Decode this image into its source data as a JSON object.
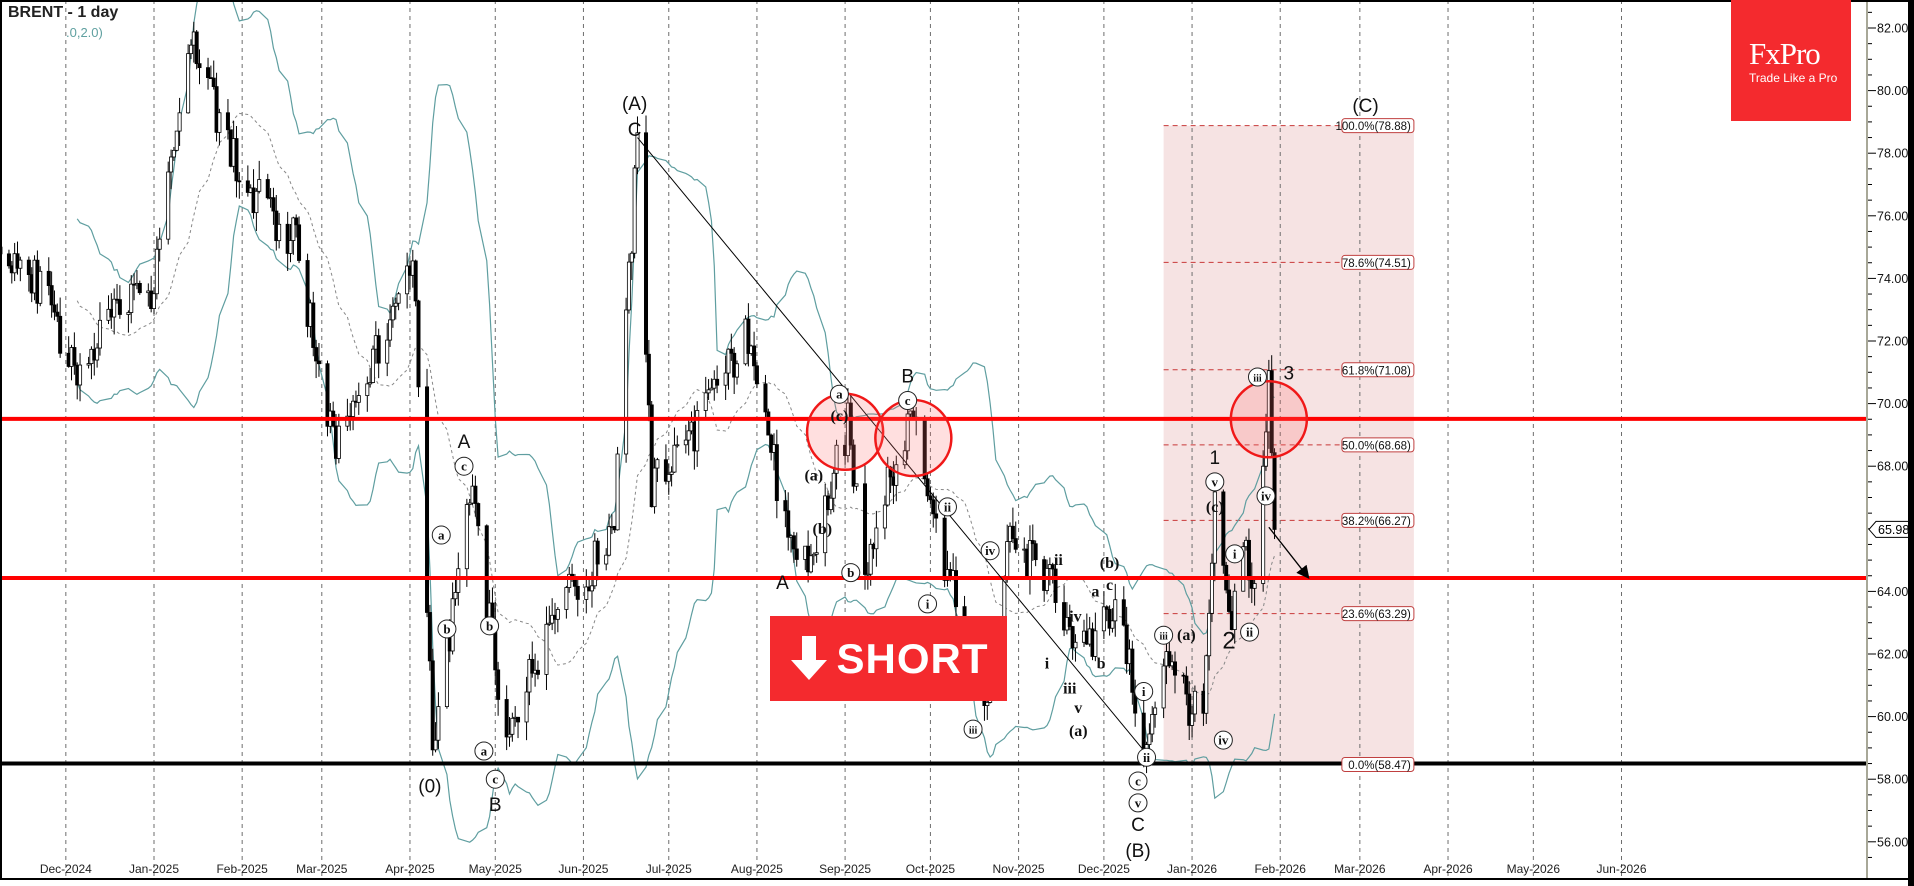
{
  "header": {
    "title": "BRENT - 1 day",
    "indicator_params": ".0,2.0)"
  },
  "logo": {
    "brand": "FxPro",
    "tagline": "Trade Like a Pro",
    "color": "#f42a2e"
  },
  "signal": {
    "label": "SHORT",
    "icon": "arrow-down-icon",
    "color": "#f42a2e"
  },
  "chart_data": {
    "type": "candlestick",
    "symbol": "BRENT",
    "timeframe": "1 day",
    "indicator": "Bollinger Bands",
    "ylim": [
      55.2,
      83
    ],
    "y_ticks": [
      "56.00",
      "58.00",
      "60.00",
      "62.00",
      "64.00",
      "66.00",
      "68.00",
      "70.00",
      "72.00",
      "74.00",
      "76.00",
      "78.00",
      "80.00",
      "82.00"
    ],
    "last_price": "65.98",
    "x_ticks": [
      {
        "date": "2024-12-01",
        "label": "Dec-2024"
      },
      {
        "date": "2025-01-01",
        "label": "Jan-2025"
      },
      {
        "date": "2025-02-01",
        "label": "Feb-2025"
      },
      {
        "date": "2025-03-01",
        "label": "Mar-2025"
      },
      {
        "date": "2025-04-01",
        "label": "Apr-2025"
      },
      {
        "date": "2025-05-01",
        "label": "May-2025"
      },
      {
        "date": "2025-06-01",
        "label": "Jun-2025"
      },
      {
        "date": "2025-07-01",
        "label": "Jul-2025"
      },
      {
        "date": "2025-08-01",
        "label": "Aug-2025"
      },
      {
        "date": "2025-09-01",
        "label": "Sep-2025"
      },
      {
        "date": "2025-10-01",
        "label": "Oct-2025"
      },
      {
        "date": "2025-11-01",
        "label": "Nov-2025"
      },
      {
        "date": "2025-12-01",
        "label": "Dec-2025"
      },
      {
        "date": "2026-01-01",
        "label": "Jan-2026"
      },
      {
        "date": "2026-02-01",
        "label": "Feb-2026"
      },
      {
        "date": "2026-03-01",
        "label": "Mar-2026"
      },
      {
        "date": "2026-04-01",
        "label": "Apr-2026"
      },
      {
        "date": "2026-05-01",
        "label": "May-2026"
      },
      {
        "date": "2026-06-01",
        "label": "Jun-2026"
      }
    ],
    "price_path": [
      [
        "2024-11-08",
        75.0
      ],
      [
        "2024-11-20",
        74.0
      ],
      [
        "2024-12-05",
        71.2
      ],
      [
        "2024-12-20",
        73.2
      ],
      [
        "2024-12-31",
        73.4
      ],
      [
        "2025-01-14",
        81.6
      ],
      [
        "2025-02-01",
        77.1
      ],
      [
        "2025-02-20",
        75.1
      ],
      [
        "2025-03-05",
        68.6
      ],
      [
        "2025-03-25",
        72.4
      ],
      [
        "2025-04-02",
        74.9
      ],
      [
        "2025-04-09",
        59.0
      ],
      [
        "2025-04-23",
        67.3
      ],
      [
        "2025-05-05",
        59.0
      ],
      [
        "2025-05-25",
        64.6
      ],
      [
        "2025-06-02",
        64.2
      ],
      [
        "2025-06-12",
        66.5
      ],
      [
        "2025-06-20",
        78.3
      ],
      [
        "2025-06-25",
        67.3
      ],
      [
        "2025-07-10",
        69.2
      ],
      [
        "2025-07-30",
        72.4
      ],
      [
        "2025-08-12",
        65.3
      ],
      [
        "2025-08-20",
        65.0
      ],
      [
        "2025-09-02",
        69.3
      ],
      [
        "2025-09-08",
        64.9
      ],
      [
        "2025-09-25",
        69.9
      ],
      [
        "2025-10-07",
        64.6
      ],
      [
        "2025-10-20",
        60.2
      ],
      [
        "2025-10-28",
        65.5
      ],
      [
        "2025-11-10",
        64.6
      ],
      [
        "2025-11-25",
        61.9
      ],
      [
        "2025-12-05",
        63.8
      ],
      [
        "2025-12-16",
        58.8
      ],
      [
        "2025-12-23",
        62.3
      ],
      [
        "2025-12-31",
        60.4
      ],
      [
        "2026-01-05",
        59.6
      ],
      [
        "2026-01-09",
        66.6
      ],
      [
        "2026-01-14",
        63.0
      ],
      [
        "2026-01-20",
        65.4
      ],
      [
        "2026-01-22",
        63.6
      ],
      [
        "2026-01-28",
        70.8
      ],
      [
        "2026-01-30",
        65.98
      ]
    ],
    "horizontal_levels": [
      {
        "price": 69.51,
        "color": "#ff0000"
      },
      {
        "price": 64.43,
        "color": "#ff0000"
      },
      {
        "price": 58.5,
        "color": "#000000"
      }
    ],
    "fibonacci": {
      "from_date": "2025-12-22",
      "to_date": "2026-03-20",
      "fill": "#f6e3e3",
      "line_color": "#c83838",
      "levels": [
        {
          "label": "100.0%(78.88)",
          "price": 78.88
        },
        {
          "label": "78.6%(74.51)",
          "price": 74.51
        },
        {
          "label": "61.8%(71.08)",
          "price": 71.08
        },
        {
          "label": "50.0%(68.68)",
          "price": 68.68
        },
        {
          "label": "38.2%(66.27)",
          "price": 66.27
        },
        {
          "label": "23.6%(63.29)",
          "price": 63.29
        },
        {
          "label": "0.0%(58.47)",
          "price": 58.47
        }
      ]
    },
    "highlight_circles": [
      {
        "date": "2025-09-01",
        "price": 69.1
      },
      {
        "date": "2025-09-25",
        "price": 68.9
      },
      {
        "date": "2026-01-28",
        "price": 69.5
      }
    ],
    "trendline": {
      "from": [
        "2025-06-20",
        78.5
      ],
      "to": [
        "2025-12-17",
        58.7
      ]
    },
    "projection_arrow": {
      "from": [
        "2026-01-28",
        66.05
      ],
      "to": [
        "2026-02-11",
        64.43
      ]
    },
    "wave_labels": [
      {
        "text": "(0)",
        "date": "2025-04-08",
        "price": 57.8,
        "style": "sans"
      },
      {
        "text": "A",
        "date": "2025-04-20",
        "price": 68.8,
        "style": "sans"
      },
      {
        "text": "c",
        "date": "2025-04-20",
        "price": 68.0,
        "style": "circle"
      },
      {
        "text": "a",
        "date": "2025-04-12",
        "price": 65.8,
        "style": "circle"
      },
      {
        "text": "b",
        "date": "2025-04-14",
        "price": 62.8,
        "style": "circle"
      },
      {
        "text": "b",
        "date": "2025-04-29",
        "price": 62.9,
        "style": "circle"
      },
      {
        "text": "a",
        "date": "2025-04-27",
        "price": 58.9,
        "style": "circle"
      },
      {
        "text": "c",
        "date": "2025-05-01",
        "price": 58.0,
        "style": "circle"
      },
      {
        "text": "B",
        "date": "2025-05-01",
        "price": 57.2,
        "style": "sans"
      },
      {
        "text": "(A)",
        "date": "2025-06-19",
        "price": 79.6,
        "style": "sans"
      },
      {
        "text": "C",
        "date": "2025-06-19",
        "price": 78.9,
        "style": "sans"
      },
      {
        "text": "(a)",
        "date": "2025-08-21",
        "price": 67.7,
        "style": "serif"
      },
      {
        "text": "a",
        "date": "2025-08-30",
        "price": 70.3,
        "style": "circle"
      },
      {
        "text": "(c)",
        "date": "2025-08-30",
        "price": 69.6,
        "style": "serif"
      },
      {
        "text": "(b)",
        "date": "2025-08-24",
        "price": 66.0,
        "style": "serif"
      },
      {
        "text": "A",
        "date": "2025-08-10",
        "price": 64.3,
        "style": "sans"
      },
      {
        "text": "b",
        "date": "2025-09-03",
        "price": 64.6,
        "style": "circle"
      },
      {
        "text": "B",
        "date": "2025-09-23",
        "price": 70.9,
        "style": "sans"
      },
      {
        "text": "c",
        "date": "2025-09-23",
        "price": 70.1,
        "style": "circle"
      },
      {
        "text": "ii",
        "date": "2025-10-07",
        "price": 66.7,
        "style": "circle"
      },
      {
        "text": "i",
        "date": "2025-09-30",
        "price": 63.6,
        "style": "circle"
      },
      {
        "text": "iv",
        "date": "2025-10-22",
        "price": 65.3,
        "style": "circle"
      },
      {
        "text": "iii",
        "date": "2025-10-16",
        "price": 59.6,
        "style": "circle"
      },
      {
        "text": "ii",
        "date": "2025-11-15",
        "price": 65.0,
        "style": "serif"
      },
      {
        "text": "iv",
        "date": "2025-11-21",
        "price": 63.2,
        "style": "serif"
      },
      {
        "text": "i",
        "date": "2025-11-11",
        "price": 61.7,
        "style": "serif"
      },
      {
        "text": "iii",
        "date": "2025-11-19",
        "price": 60.9,
        "style": "serif"
      },
      {
        "text": "v",
        "date": "2025-11-22",
        "price": 60.4,
        "style": "serif"
      },
      {
        "text": "(a)",
        "date": "2025-11-22",
        "price": 59.8,
        "style": "serif"
      },
      {
        "text": "a",
        "date": "2025-11-28",
        "price": 64.0,
        "style": "serif"
      },
      {
        "text": "c",
        "date": "2025-12-03",
        "price": 64.2,
        "style": "serif"
      },
      {
        "text": "(b)",
        "date": "2025-12-03",
        "price": 64.9,
        "style": "serif"
      },
      {
        "text": "b",
        "date": "2025-11-30",
        "price": 61.7,
        "style": "serif"
      },
      {
        "text": "i",
        "date": "2025-12-15",
        "price": 60.8,
        "style": "circle"
      },
      {
        "text": "ii",
        "date": "2025-12-16",
        "price": 58.7,
        "style": "circle"
      },
      {
        "text": "c",
        "date": "2025-12-13",
        "price": 58.2,
        "style": "circle"
      },
      {
        "text": "v",
        "date": "2025-12-13",
        "price": 57.5,
        "style": "circle"
      },
      {
        "text": "C",
        "date": "2025-12-13",
        "price": 56.7,
        "style": "sans"
      },
      {
        "text": "(B)",
        "date": "2025-12-13",
        "price": 56.0,
        "style": "sans"
      },
      {
        "text": "iii",
        "date": "2025-12-22",
        "price": 62.6,
        "style": "circle"
      },
      {
        "text": "(a)",
        "date": "2025-12-30",
        "price": 62.6,
        "style": "serif"
      },
      {
        "text": "iv",
        "date": "2026-01-12",
        "price": 59.25,
        "style": "circle"
      },
      {
        "text": "1",
        "date": "2026-01-09",
        "price": 68.3,
        "style": "sans"
      },
      {
        "text": "v",
        "date": "2026-01-09",
        "price": 67.5,
        "style": "circle"
      },
      {
        "text": "(c)",
        "date": "2026-01-09",
        "price": 66.7,
        "style": "serif"
      },
      {
        "text": "i",
        "date": "2026-01-16",
        "price": 65.2,
        "style": "circle"
      },
      {
        "text": "2",
        "date": "2026-01-14",
        "price": 62.4,
        "style": "sans2"
      },
      {
        "text": "ii",
        "date": "2026-01-17",
        "price": 62.7,
        "style": "circle"
      },
      {
        "text": "iii",
        "date": "2026-01-24",
        "price": 70.85,
        "style": "circle"
      },
      {
        "text": "3",
        "date": "2026-02-04",
        "price": 71.0,
        "style": "sans"
      },
      {
        "text": "iv",
        "date": "2026-01-27",
        "price": 67.05,
        "style": "circle"
      },
      {
        "text": "(C)",
        "date": "2026-03-03",
        "price": 79.15,
        "style": "sans"
      }
    ],
    "colors": {
      "bands": "#5f9ea0",
      "middle_band": "#888888",
      "candle_up": "#ffffff",
      "candle_down": "#000000"
    }
  }
}
